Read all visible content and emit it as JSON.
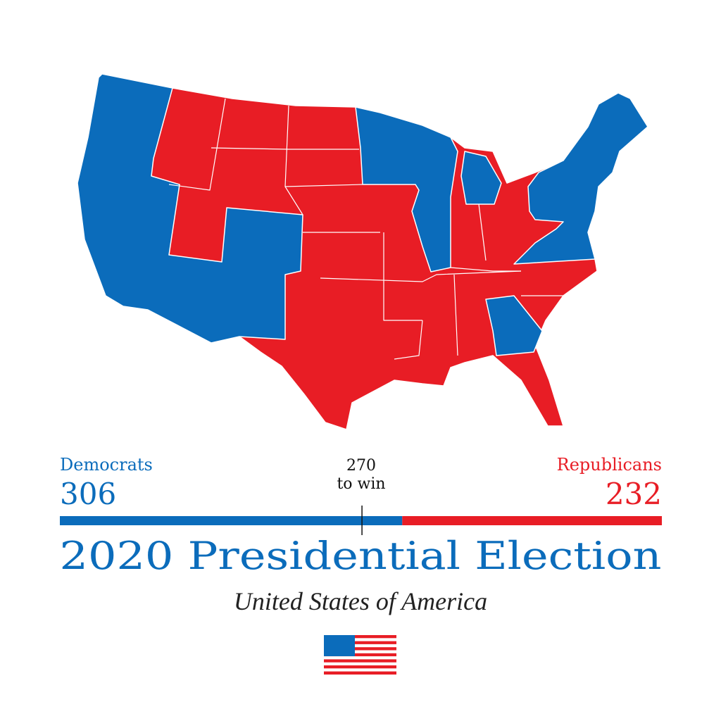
{
  "title": "2020 Presidential Election",
  "subtitle": "United States of America",
  "parties": [
    {
      "name": "Democrats",
      "votes": 306,
      "color": "#0b6cbb"
    },
    {
      "name": "Republicans",
      "votes": 232,
      "color": "#e81d25"
    }
  ],
  "threshold": {
    "value": 270,
    "label": "to win"
  }
}
